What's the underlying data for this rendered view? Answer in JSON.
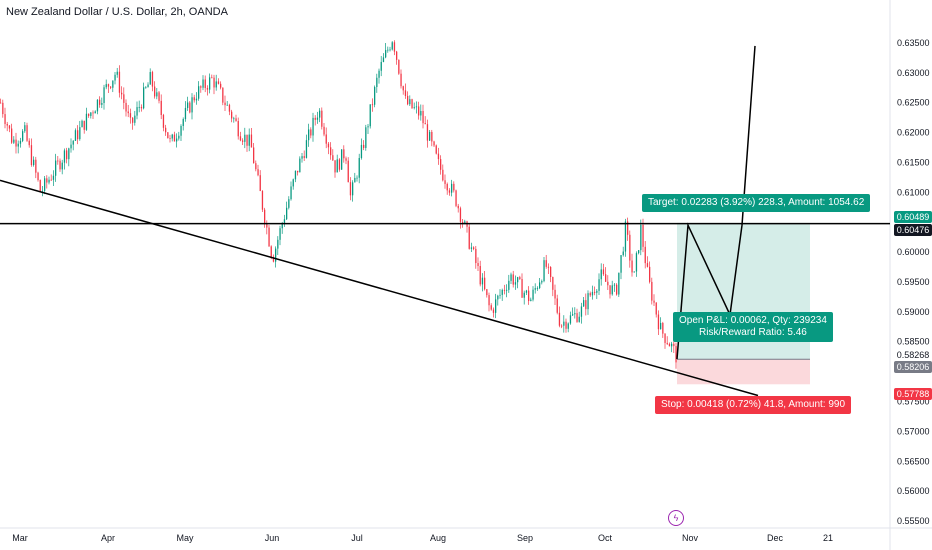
{
  "header": {
    "title": "New Zealand Dollar / U.S. Dollar, 2h, OANDA"
  },
  "colors": {
    "up": "#089981",
    "down": "#f23645",
    "profit": "#089981",
    "loss": "#f23645",
    "profit_zone": "#d5ede8",
    "loss_zone": "#fbd9dc",
    "current": "#787b86",
    "line": "#000000"
  },
  "chart_data": {
    "type": "candlestick",
    "symbol": "NZDUSD",
    "interval": "2h",
    "ylim": [
      0.5545,
      0.6385
    ],
    "y_ticks": [
      "0.63500",
      "0.63000",
      "0.62500",
      "0.62000",
      "0.61500",
      "0.61000",
      "0.60000",
      "0.59500",
      "0.59000",
      "0.58500",
      "0.57500",
      "0.57000",
      "0.56500",
      "0.56000",
      "0.55500"
    ],
    "x_ticks": [
      "Mar",
      "Apr",
      "May",
      "Jun",
      "Jul",
      "Aug",
      "Sep",
      "Oct",
      "Nov",
      "Dec",
      "21"
    ],
    "price_path": [
      [
        "Mar",
        0.625
      ],
      [
        "Mar",
        0.6185
      ],
      [
        "Mar",
        0.62
      ],
      [
        "Mar",
        0.61
      ],
      [
        "Apr",
        0.63
      ],
      [
        "Apr",
        0.621
      ],
      [
        "Apr",
        0.629
      ],
      [
        "May",
        0.618
      ],
      [
        "May",
        0.6265
      ],
      [
        "May",
        0.629
      ],
      [
        "May",
        0.62
      ],
      [
        "Jun",
        0.618
      ],
      [
        "Jun",
        0.599
      ],
      [
        "Jun",
        0.613
      ],
      [
        "Jun",
        0.624
      ],
      [
        "Jun",
        0.614
      ],
      [
        "Jun",
        0.617
      ],
      [
        "Jul",
        0.609
      ],
      [
        "Jul",
        0.616
      ],
      [
        "Jul",
        0.63
      ],
      [
        "Jul",
        0.636
      ],
      [
        "Jul",
        0.625
      ],
      [
        "Jul",
        0.623
      ],
      [
        "Jul",
        0.6145
      ],
      [
        "Aug",
        0.609
      ],
      [
        "Aug",
        0.601
      ],
      [
        "Aug",
        0.59
      ],
      [
        "Aug",
        0.596
      ],
      [
        "Sep",
        0.592
      ],
      [
        "Sep",
        0.598
      ],
      [
        "Sep",
        0.588
      ],
      [
        "Sep",
        0.59
      ],
      [
        "Sep",
        0.596
      ],
      [
        "Oct",
        0.593
      ],
      [
        "Oct",
        0.604
      ],
      [
        "Oct",
        0.595
      ],
      [
        "Oct",
        0.604
      ],
      [
        "Oct",
        0.595
      ],
      [
        "Oct",
        0.587
      ],
      [
        "Oct",
        0.5845
      ],
      [
        "Oct",
        0.5821
      ]
    ],
    "horizontal_line": 0.60476,
    "trendline": {
      "x": [
        "Mar",
        "Nov"
      ],
      "y": [
        0.612,
        0.576
      ]
    },
    "projection": {
      "type": "line",
      "x": [
        "Oct",
        "Oct",
        "Nov",
        "Nov",
        "Nov"
      ],
      "y": [
        0.5821,
        0.6045,
        0.5895,
        0.6045,
        0.6345
      ]
    },
    "position": {
      "entry": 0.58206,
      "target": 0.60489,
      "stop": 0.57788,
      "target_text": "Target: 0.02283 (3.92%) 228.3, Amount: 1054.62",
      "open_text": "Open P&L: 0.00062, Qty: 239234",
      "ratio_text": "Risk/Reward Ratio: 5.46",
      "stop_text": "Stop: 0.00418 (0.72%) 41.8, Amount: 990"
    },
    "price_labels": {
      "target": "0.60489",
      "horizontal": "0.60476",
      "last_price": "0.58268",
      "current": "0.58206",
      "stop": "0.57788"
    }
  }
}
